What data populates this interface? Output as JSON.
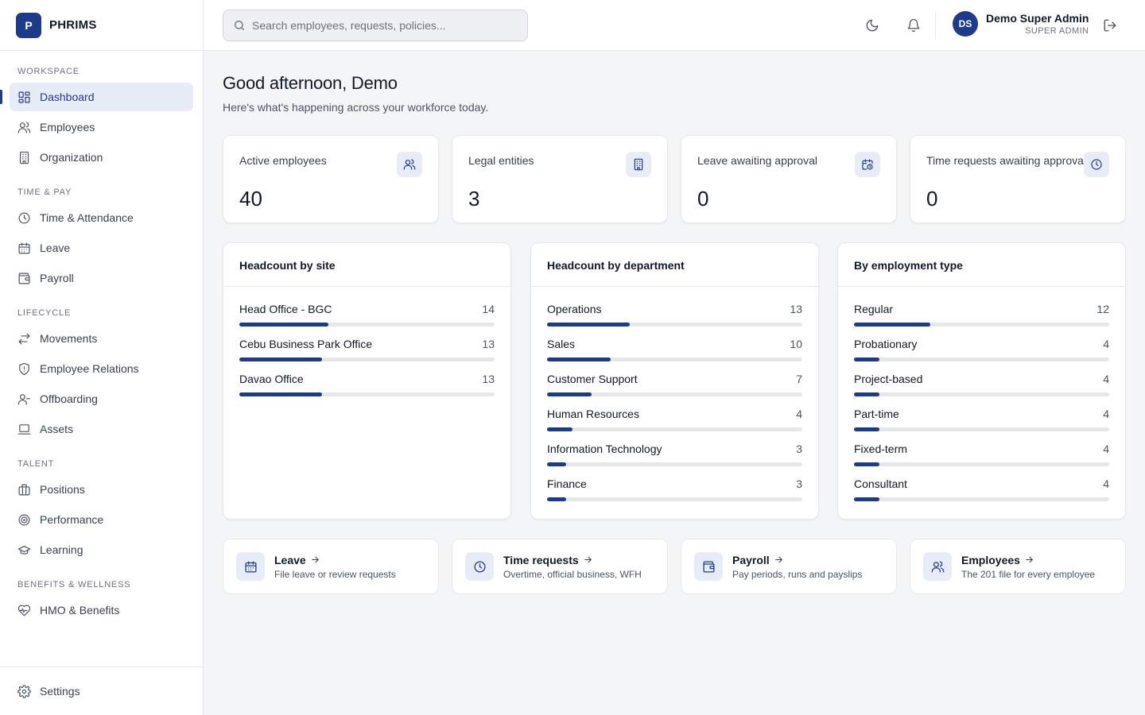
{
  "app": {
    "logo_letter": "P",
    "name": "PHRIMS"
  },
  "sidebar": {
    "sections": [
      {
        "title": "WORKSPACE",
        "items": [
          {
            "label": "Dashboard",
            "icon": "dashboard-icon",
            "active": true
          },
          {
            "label": "Employees",
            "icon": "users-icon"
          },
          {
            "label": "Organization",
            "icon": "building-icon"
          }
        ]
      },
      {
        "title": "TIME & PAY",
        "items": [
          {
            "label": "Time & Attendance",
            "icon": "clock-icon"
          },
          {
            "label": "Leave",
            "icon": "calendar-icon"
          },
          {
            "label": "Payroll",
            "icon": "wallet-icon"
          }
        ]
      },
      {
        "title": "LIFECYCLE",
        "items": [
          {
            "label": "Movements",
            "icon": "arrows-icon"
          },
          {
            "label": "Employee Relations",
            "icon": "shield-icon"
          },
          {
            "label": "Offboarding",
            "icon": "user-minus-icon"
          },
          {
            "label": "Assets",
            "icon": "laptop-icon"
          }
        ]
      },
      {
        "title": "TALENT",
        "items": [
          {
            "label": "Positions",
            "icon": "briefcase-icon"
          },
          {
            "label": "Performance",
            "icon": "target-icon"
          },
          {
            "label": "Learning",
            "icon": "graduation-cap-icon"
          }
        ]
      },
      {
        "title": "BENEFITS & WELLNESS",
        "items": [
          {
            "label": "HMO & Benefits",
            "icon": "heart-pulse-icon"
          }
        ]
      }
    ],
    "footer": {
      "label": "Settings",
      "icon": "gear-icon"
    }
  },
  "topbar": {
    "search_placeholder": "Search employees, requests, policies...",
    "user": {
      "initials": "DS",
      "name": "Demo Super Admin",
      "role": "SUPER ADMIN"
    }
  },
  "main": {
    "greeting": "Good afternoon, Demo",
    "subtitle": "Here's what's happening across your workforce today.",
    "stats": [
      {
        "label": "Active employees",
        "value": "40",
        "icon": "users-icon"
      },
      {
        "label": "Legal entities",
        "value": "3",
        "icon": "building-icon"
      },
      {
        "label": "Leave awaiting approval",
        "value": "0",
        "icon": "calendar-clock-icon"
      },
      {
        "label": "Time requests awaiting approval",
        "value": "0",
        "icon": "clock-icon"
      }
    ],
    "panels": [
      {
        "title": "Headcount by site",
        "max": 40,
        "rows": [
          {
            "label": "Head Office - BGC",
            "value": 14
          },
          {
            "label": "Cebu Business Park Office",
            "value": 13
          },
          {
            "label": "Davao Office",
            "value": 13
          }
        ]
      },
      {
        "title": "Headcount by department",
        "max": 40,
        "rows": [
          {
            "label": "Operations",
            "value": 13
          },
          {
            "label": "Sales",
            "value": 10
          },
          {
            "label": "Customer Support",
            "value": 7
          },
          {
            "label": "Human Resources",
            "value": 4
          },
          {
            "label": "Information Technology",
            "value": 3
          },
          {
            "label": "Finance",
            "value": 3
          }
        ]
      },
      {
        "title": "By employment type",
        "max": 40,
        "rows": [
          {
            "label": "Regular",
            "value": 12
          },
          {
            "label": "Probationary",
            "value": 4
          },
          {
            "label": "Project-based",
            "value": 4
          },
          {
            "label": "Part-time",
            "value": 4
          },
          {
            "label": "Fixed-term",
            "value": 4
          },
          {
            "label": "Consultant",
            "value": 4
          }
        ]
      }
    ],
    "quick_links": [
      {
        "title": "Leave",
        "desc": "File leave or review requests",
        "icon": "calendar-icon"
      },
      {
        "title": "Time requests",
        "desc": "Overtime, official business, WFH",
        "icon": "clock-icon"
      },
      {
        "title": "Payroll",
        "desc": "Pay periods, runs and payslips",
        "icon": "wallet-icon"
      },
      {
        "title": "Employees",
        "desc": "The 201 file for every employee",
        "icon": "users-icon"
      }
    ]
  },
  "colors": {
    "accent": "#1e3a8a",
    "accent_soft": "#e8ecf6",
    "track": "#e5e7eb"
  }
}
